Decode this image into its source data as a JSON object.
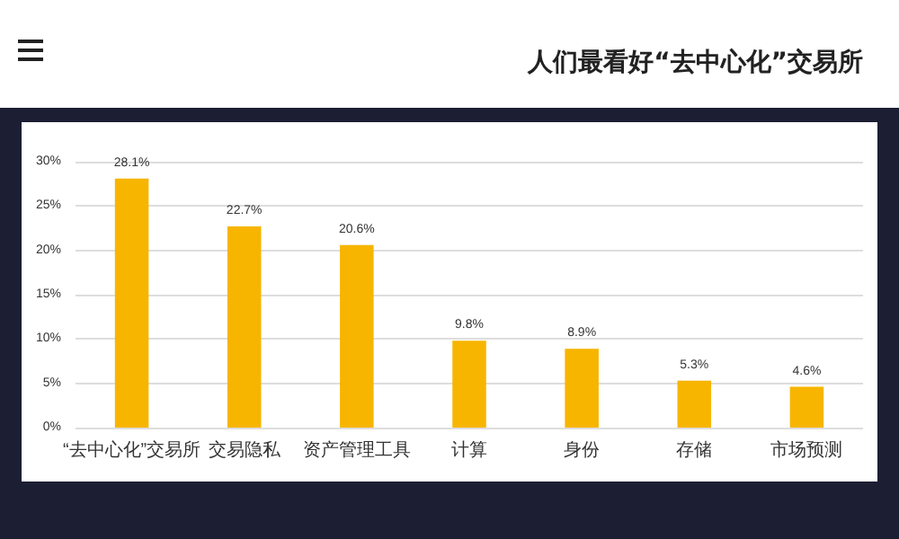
{
  "chart_data": {
    "type": "bar",
    "title": "人们最看好“去中心化”交易所",
    "categories": [
      "“去中心化”交易所",
      "交易隐私",
      "资产管理工具",
      "计算",
      "身份",
      "存储",
      "市场预测"
    ],
    "values": [
      28.1,
      22.7,
      20.6,
      9.8,
      8.9,
      5.3,
      4.6
    ],
    "color": "#f7b500",
    "ylim": [
      0,
      30
    ],
    "yticks": [
      {
        "value": 0,
        "label": "0%"
      },
      {
        "value": 5,
        "label": "5%"
      },
      {
        "value": 10,
        "label": "10%"
      },
      {
        "value": 15,
        "label": "15%"
      },
      {
        "value": 20,
        "label": "20%"
      },
      {
        "value": 25,
        "label": "25%"
      },
      {
        "value": 30,
        "label": "30%"
      }
    ],
    "value_labels": [
      "28.1%",
      "22.7%",
      "20.6%",
      "9.8%",
      "8.9%",
      "5.3%",
      "4.6%"
    ],
    "grid": "y"
  }
}
